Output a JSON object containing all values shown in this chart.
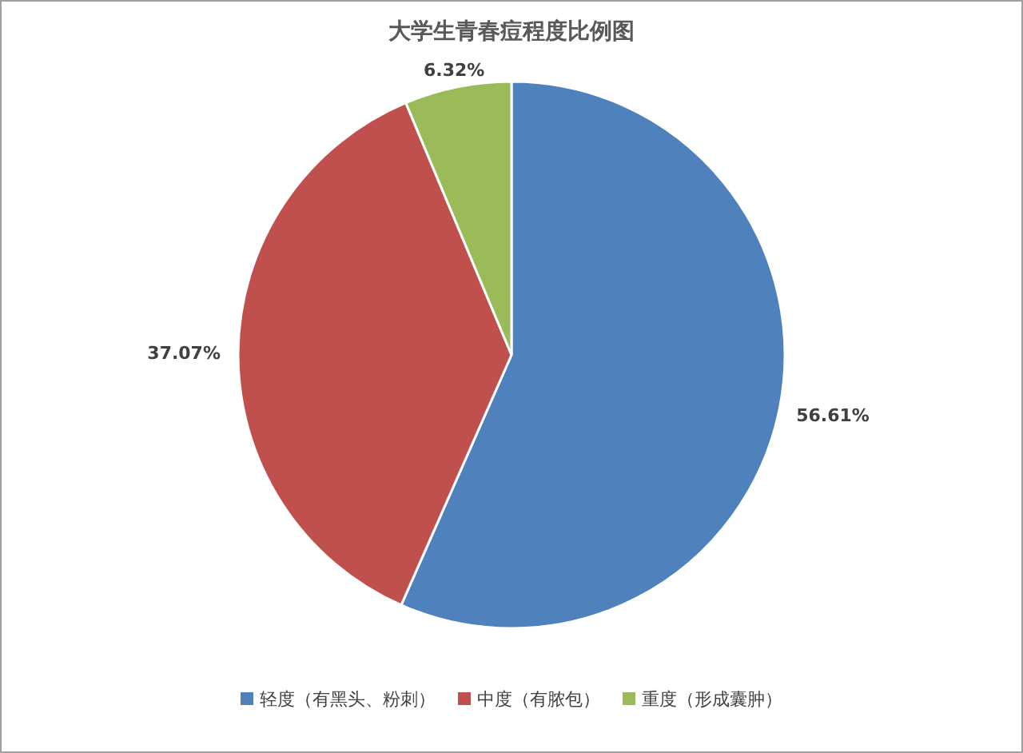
{
  "chart_data": {
    "type": "pie",
    "title": "大学生青春痘程度比例图",
    "categories": [
      "轻度（有黑头、粉刺）",
      "中度（有脓包）",
      "重度（形成囊肿）"
    ],
    "values": [
      56.61,
      37.07,
      6.32
    ],
    "colors": [
      "#4f81bd",
      "#c0504d",
      "#9bbb59"
    ],
    "value_labels": [
      "56.61%",
      "37.07%",
      "6.32%"
    ],
    "legend": "bottom"
  }
}
